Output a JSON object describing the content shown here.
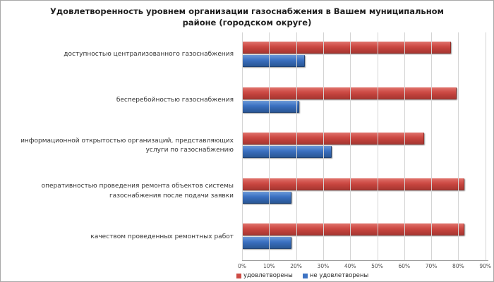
{
  "chart_data": {
    "type": "bar",
    "orientation": "horizontal",
    "title": "Удовлетворенность уровнем организации газоснабжения в Вашем муниципальном районе (городском округе)",
    "categories": [
      "доступностью централизованного газоснабжения",
      "бесперебойностью  газоснабжения",
      "информационной открытостью  организаций, представляющих услуги по газоснабжению",
      "оперативностью проведения ремонта объектов системы газоснабжения после подачи заявки",
      "качеством проведенных ремонтных работ"
    ],
    "series": [
      {
        "name": "удовлетворены",
        "color": "#cd4b45",
        "values": [
          77,
          79,
          67,
          82,
          82
        ]
      },
      {
        "name": "не удовлетворены",
        "color": "#3d73c3",
        "values": [
          23,
          21,
          33,
          18,
          18
        ]
      }
    ],
    "x_ticks": [
      "0%",
      "10%",
      "20%",
      "30%",
      "40%",
      "50%",
      "60%",
      "70%",
      "80%",
      "90%"
    ],
    "xlim": [
      0,
      91
    ],
    "grid": "vertical",
    "legend_position": "bottom",
    "background": "#ffffff"
  }
}
